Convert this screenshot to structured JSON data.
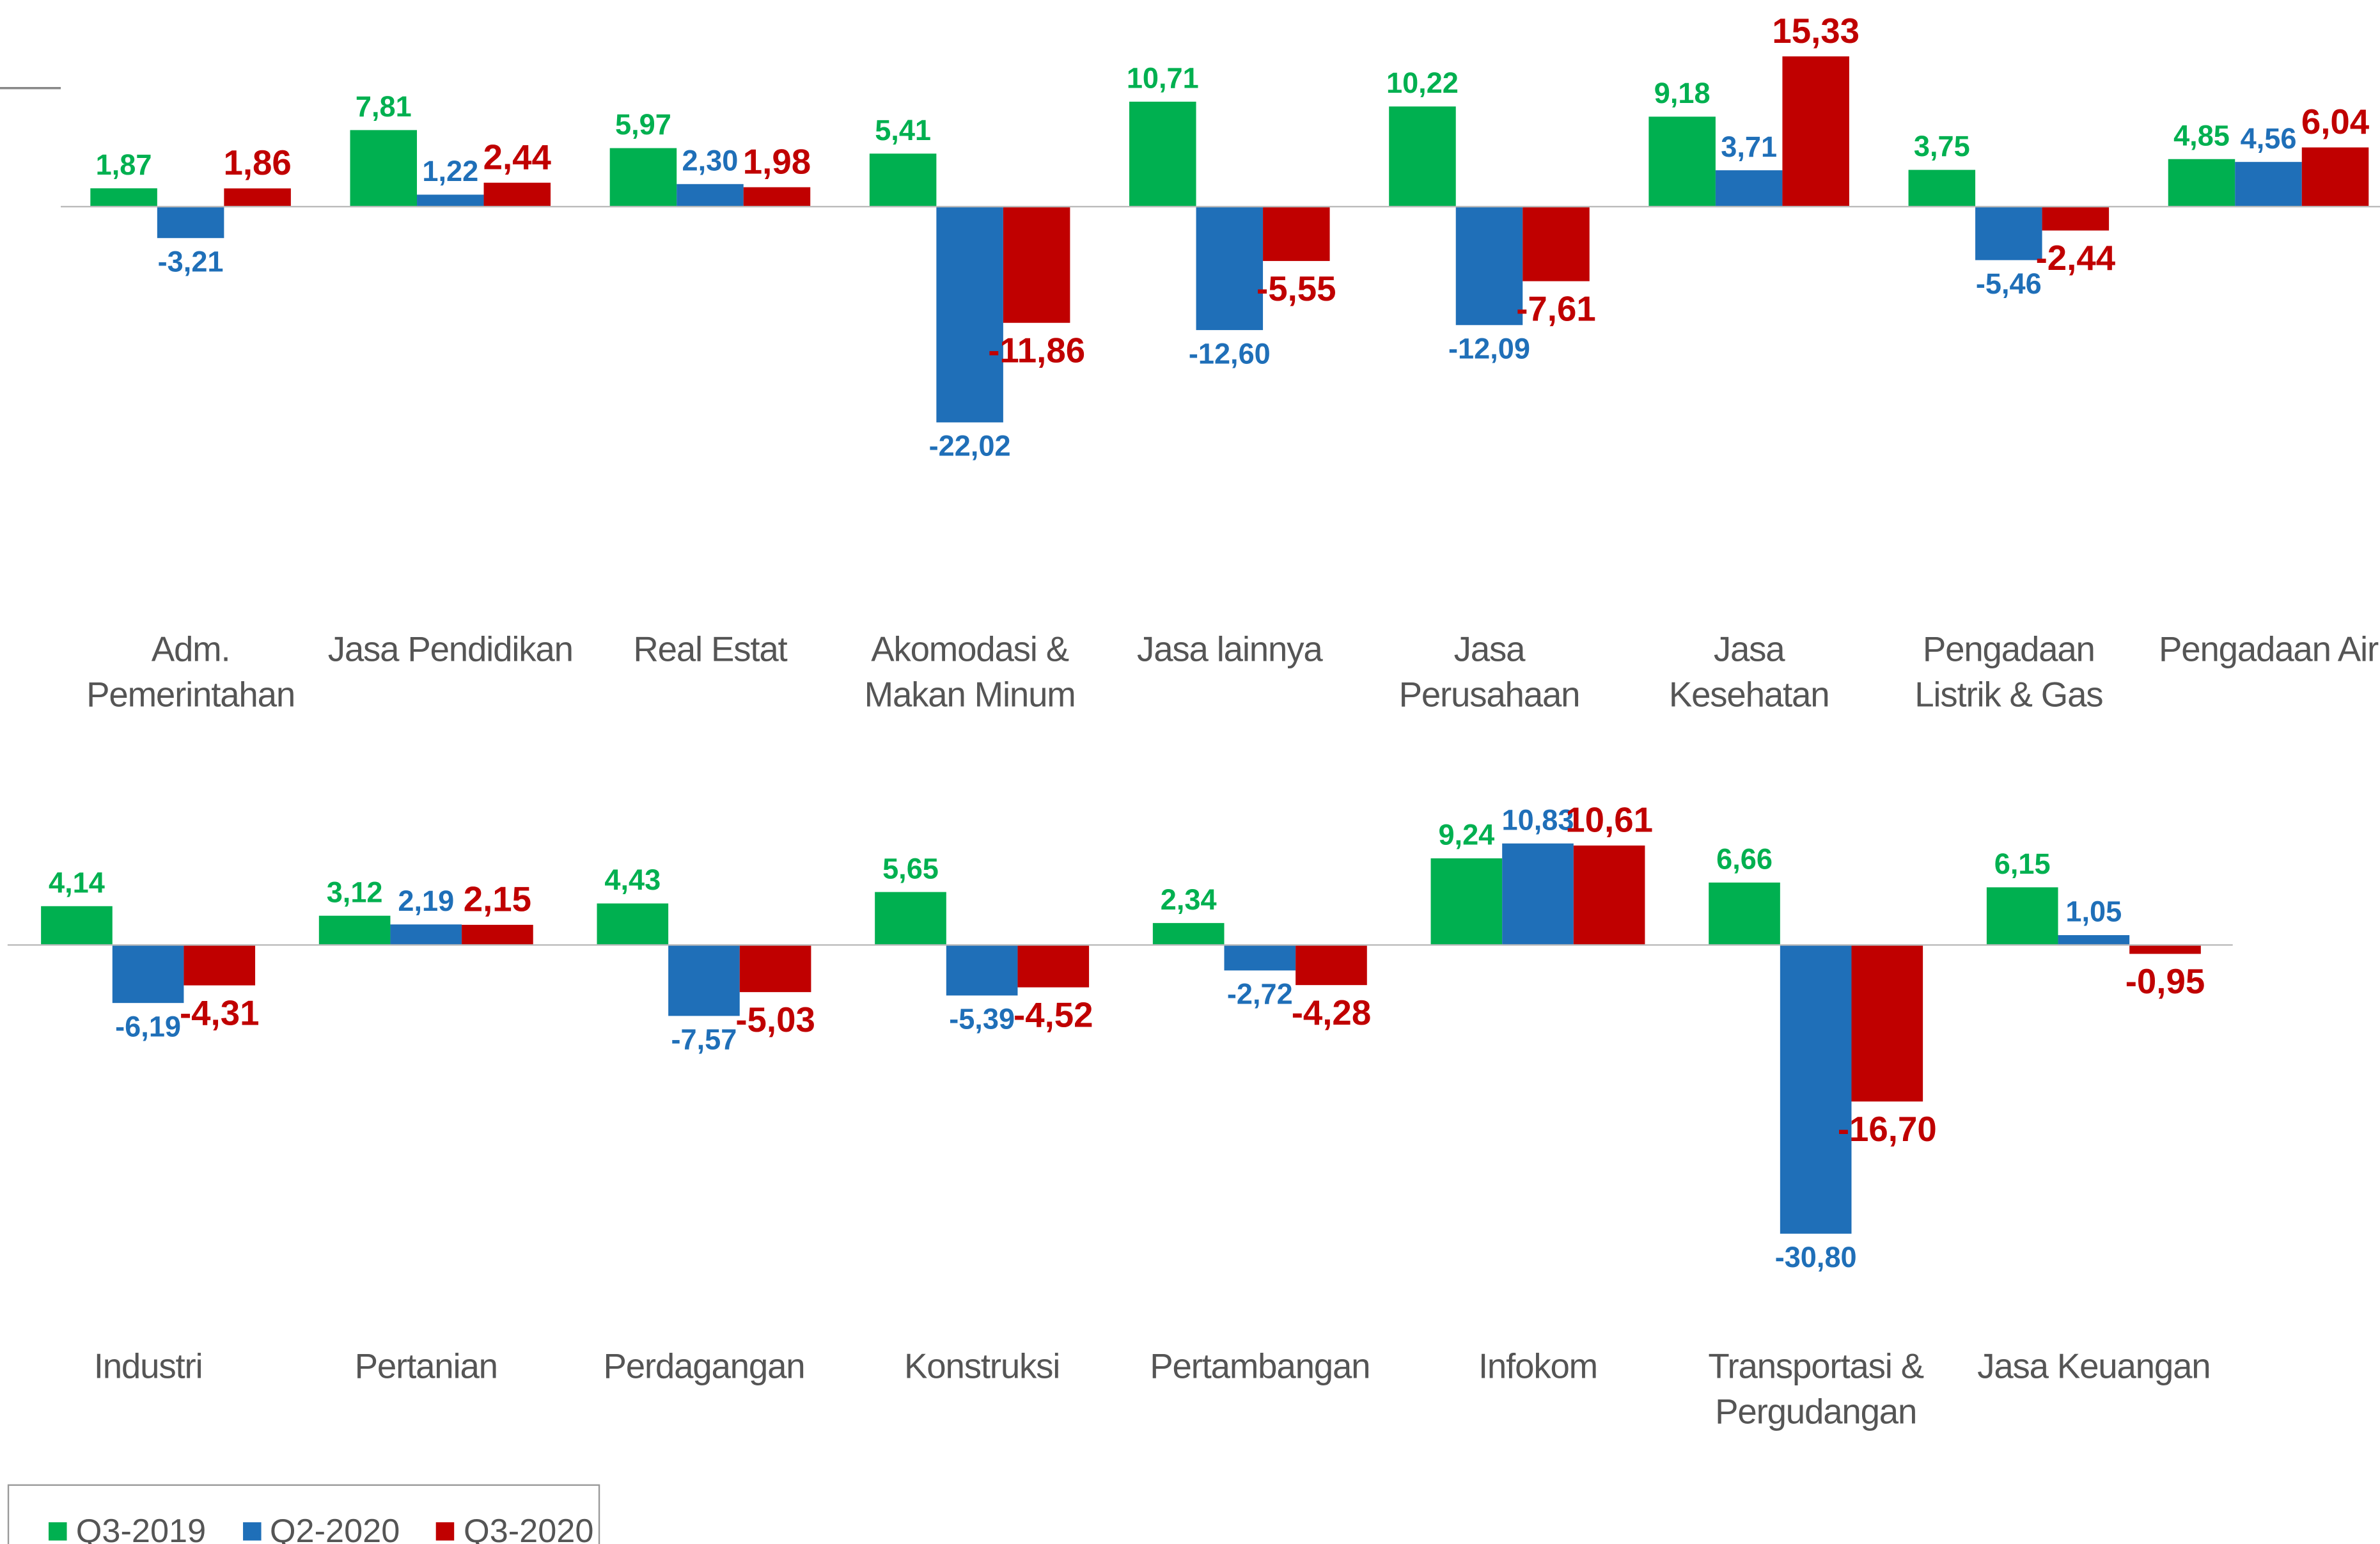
{
  "chart_data": [
    {
      "type": "bar",
      "categories": [
        "Adm.\nPemerintahan",
        "Jasa Pendidikan",
        "Real Estat",
        "Akomodasi &\nMakan Minum",
        "Jasa lainnya",
        "Jasa\nPerusahaan",
        "Jasa\nKesehatan",
        "Pengadaan\nListrik & Gas",
        "Pengadaan Air"
      ],
      "series": [
        {
          "name": "Q3-2019",
          "color": "#00b050",
          "values": [
            1.87,
            7.81,
            5.97,
            5.41,
            10.71,
            10.22,
            9.18,
            3.75,
            4.85
          ],
          "value_labels": [
            "1,87",
            "7,81",
            "5,97",
            "5,41",
            "10,71",
            "10,22",
            "9,18",
            "3,75",
            "4,85"
          ]
        },
        {
          "name": "Q2-2020",
          "color": "#1f6fb8",
          "values": [
            -3.21,
            1.22,
            2.3,
            -22.02,
            -12.6,
            -12.09,
            3.71,
            -5.46,
            4.56
          ],
          "value_labels": [
            "-3,21",
            "1,22",
            "2,30",
            "-22,02",
            "-12,60",
            "-12,09",
            "3,71",
            "-5,46",
            "4,56"
          ]
        },
        {
          "name": "Q3-2020",
          "color": "#c00000",
          "values": [
            1.86,
            2.44,
            1.98,
            -11.86,
            -5.55,
            -7.61,
            15.33,
            -2.44,
            6.04
          ],
          "value_labels": [
            "1,86",
            "2,44",
            "1,98",
            "-11,86",
            "-5,55",
            "-7,61",
            "15,33",
            "-2,44",
            "6,04"
          ]
        }
      ]
    },
    {
      "type": "bar",
      "categories": [
        "Industri",
        "Pertanian",
        "Perdagangan",
        "Konstruksi",
        "Pertambangan",
        "Infokom",
        "Transportasi &\nPergudangan",
        "Jasa Keuangan"
      ],
      "series": [
        {
          "color": "#00b050",
          "values": [
            4.14,
            3.12,
            4.43,
            5.65,
            2.34,
            9.24,
            6.66,
            6.15
          ],
          "value_labels": [
            "4,14",
            "3,12",
            "4,43",
            "5,65",
            "2,34",
            "9,24",
            "6,66",
            "6,15"
          ]
        },
        {
          "color": "#1f6fb8",
          "values": [
            -6.19,
            2.19,
            -7.57,
            -5.39,
            -2.72,
            10.83,
            -30.8,
            1.05
          ],
          "value_labels": [
            "-6,19",
            "2,19",
            "-7,57",
            "-5,39",
            "-2,72",
            "10,83",
            "-30,80",
            "1,05"
          ]
        },
        {
          "color": "#c00000",
          "values": [
            -4.31,
            2.15,
            -5.03,
            -4.52,
            -4.28,
            10.61,
            -16.7,
            -0.95
          ],
          "value_labels": [
            "-4,31",
            "2,15",
            "-5,03",
            "-4,52",
            "-4,28",
            "10,61",
            "-16,70",
            "-0,95"
          ]
        }
      ]
    }
  ]
}
